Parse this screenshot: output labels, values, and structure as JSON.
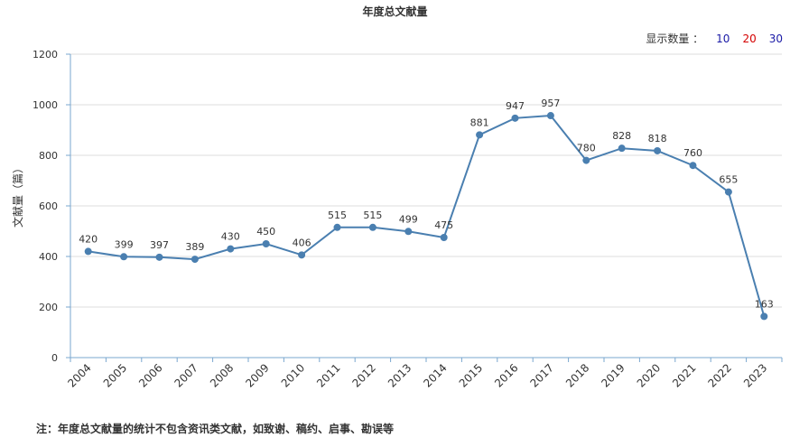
{
  "title": "年度总文献量",
  "count_switch": {
    "label": "显示数量 ：",
    "options": [
      "10",
      "20",
      "30"
    ]
  },
  "footnote": "注：年度总文献量的统计不包含资讯类文献，如致谢、稿约、启事、勘误等",
  "colors": {
    "line": "#4a7fb0",
    "axis": "#7aa7cf",
    "grid": "#dddddd",
    "text": "#333333"
  },
  "chart_data": {
    "type": "line",
    "title": "年度总文献量",
    "ylabel": "文献量（篇）",
    "xlabel": "",
    "ylim": [
      0,
      1200
    ],
    "yticks": [
      0,
      200,
      400,
      600,
      800,
      1000,
      1200
    ],
    "grid": true,
    "categories": [
      "2004",
      "2005",
      "2006",
      "2007",
      "2008",
      "2009",
      "2010",
      "2011",
      "2012",
      "2013",
      "2014",
      "2015",
      "2016",
      "2017",
      "2018",
      "2019",
      "2020",
      "2021",
      "2022",
      "2023"
    ],
    "series": [
      {
        "values": [
          420,
          399,
          397,
          389,
          430,
          450,
          406,
          515,
          515,
          499,
          475,
          881,
          947,
          957,
          780,
          828,
          818,
          760,
          655,
          163
        ]
      }
    ]
  }
}
